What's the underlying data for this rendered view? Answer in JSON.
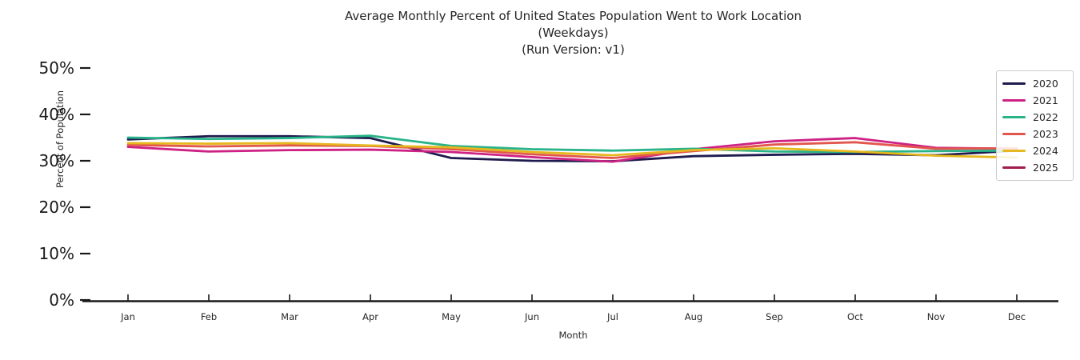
{
  "title": {
    "line1": "Average Monthly Percent of United States Population Went to Work Location",
    "line2": "(Weekdays)",
    "line3": "(Run Version: v1)"
  },
  "axes": {
    "x_label": "Month",
    "y_label": "Percent of Population",
    "x_tick_labels": [
      "Jan",
      "Feb",
      "Mar",
      "Apr",
      "May",
      "Jun",
      "Jul",
      "Aug",
      "Sep",
      "Oct",
      "Nov",
      "Dec"
    ],
    "y_tick_labels": [
      "0%",
      "10%",
      "20%",
      "30%",
      "40%",
      "50%"
    ]
  },
  "legend": {
    "entries": [
      {
        "label": "2020",
        "color": "#1f1b4e"
      },
      {
        "label": "2021",
        "color": "#cd2184"
      },
      {
        "label": "2022",
        "color": "#29b389"
      },
      {
        "label": "2023",
        "color": "#e2574d"
      },
      {
        "label": "2024",
        "color": "#e6b71e"
      },
      {
        "label": "2025",
        "color": "#a11d4d"
      }
    ]
  },
  "chart_data": {
    "type": "line",
    "title": "Average Monthly Percent of United States Population Went to Work Location (Weekdays) (Run Version: v1)",
    "xlabel": "Month",
    "ylabel": "Percent of Population",
    "categories": [
      "Jan",
      "Feb",
      "Mar",
      "Apr",
      "May",
      "Jun",
      "Jul",
      "Aug",
      "Sep",
      "Oct",
      "Nov",
      "Dec"
    ],
    "ylim": [
      0,
      52
    ],
    "y_ticks": [
      0,
      10,
      20,
      30,
      40,
      50
    ],
    "grid": false,
    "legend_position": "upper right",
    "series": [
      {
        "name": "2020",
        "color": "#1f1b4e",
        "values": [
          34.6,
          35.3,
          35.3,
          34.9,
          30.6,
          30.0,
          29.9,
          31.0,
          31.3,
          31.5,
          31.2,
          32.2
        ]
      },
      {
        "name": "2021",
        "color": "#cd2184",
        "values": [
          33.0,
          32.0,
          32.3,
          32.4,
          31.9,
          30.8,
          29.8,
          32.5,
          34.2,
          34.9,
          32.8,
          32.6
        ]
      },
      {
        "name": "2022",
        "color": "#29b389",
        "values": [
          35.0,
          34.7,
          34.9,
          35.4,
          33.2,
          32.5,
          32.2,
          32.6,
          32.0,
          31.9,
          32.1,
          32.2
        ]
      },
      {
        "name": "2023",
        "color": "#e2574d",
        "values": [
          33.4,
          33.1,
          33.3,
          33.2,
          32.5,
          31.4,
          30.6,
          32.1,
          33.5,
          34.0,
          32.6,
          32.7
        ]
      },
      {
        "name": "2024",
        "color": "#e6b71e",
        "values": [
          33.8,
          33.7,
          33.8,
          33.3,
          32.9,
          31.9,
          31.2,
          32.3,
          32.7,
          32.0,
          31.1,
          30.7
        ]
      },
      {
        "name": "2025",
        "color": "#a11d4d",
        "values": [
          33.3
        ]
      }
    ]
  }
}
